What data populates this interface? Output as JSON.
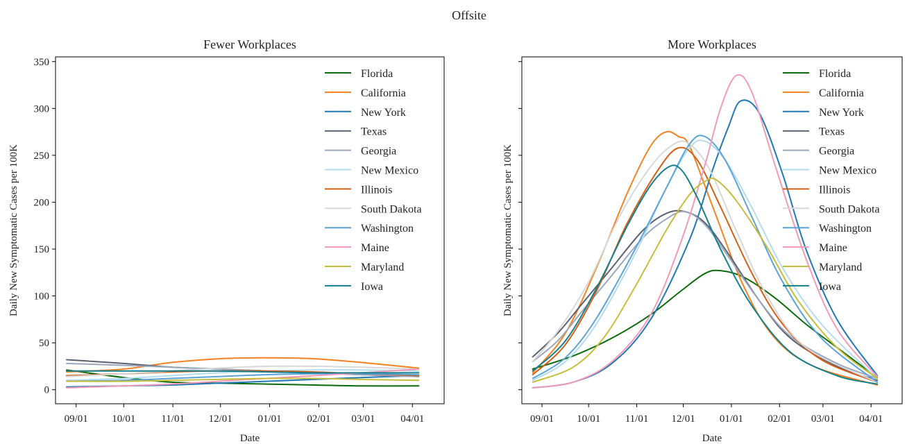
{
  "suptitle": "Offsite",
  "colors": {
    "Florida": "#0a6b0a",
    "California": "#f5821f",
    "New York": "#1f77b4",
    "Texas": "#5a6170",
    "Georgia": "#9aa7bd",
    "New Mexico": "#b4dcef",
    "Illinois": "#d35f16",
    "South Dakota": "#d8d8d8",
    "Washington": "#5ba3d9",
    "Maine": "#f29ab8",
    "Maryland": "#c6bd3c",
    "Iowa": "#147f8c"
  },
  "chart_data": [
    {
      "type": "line",
      "title": "Fewer Workplaces",
      "xlabel": "Date",
      "ylabel": "Daily New Symptomatic Cases per 100K",
      "x_ticks": [
        "09/01",
        "10/01",
        "11/01",
        "12/01",
        "01/01",
        "02/01",
        "03/01",
        "04/01"
      ],
      "y_ticks": [
        0,
        50,
        100,
        150,
        200,
        250,
        300,
        350
      ],
      "ylim": [
        -15,
        355
      ],
      "xlim_days": [
        -13,
        232
      ],
      "legend": "upper-right",
      "series": [
        {
          "name": "Florida",
          "x_days": [
            -6,
            30,
            60,
            90,
            120,
            150,
            180,
            216
          ],
          "values": [
            21,
            13,
            8,
            7,
            6,
            5,
            4,
            4
          ]
        },
        {
          "name": "California",
          "x_days": [
            -6,
            30,
            60,
            90,
            120,
            150,
            180,
            216
          ],
          "values": [
            19,
            22,
            29,
            33,
            34,
            33,
            29,
            23
          ]
        },
        {
          "name": "New York",
          "x_days": [
            -6,
            30,
            60,
            90,
            120,
            150,
            180,
            216
          ],
          "values": [
            3,
            4,
            5,
            7,
            9,
            11,
            13,
            15
          ]
        },
        {
          "name": "Texas",
          "x_days": [
            -6,
            30,
            60,
            90,
            120,
            150,
            180,
            216
          ],
          "values": [
            32,
            28,
            24,
            22,
            20,
            18,
            16,
            14
          ]
        },
        {
          "name": "Georgia",
          "x_days": [
            -6,
            30,
            60,
            90,
            120,
            150,
            180,
            216
          ],
          "values": [
            28,
            26,
            24,
            22,
            20,
            18,
            16,
            14
          ]
        },
        {
          "name": "New Mexico",
          "x_days": [
            -6,
            30,
            60,
            90,
            120,
            150,
            180,
            216
          ],
          "values": [
            10,
            12,
            15,
            18,
            20,
            21,
            21,
            20
          ]
        },
        {
          "name": "Illinois",
          "x_days": [
            -6,
            30,
            60,
            90,
            120,
            150,
            180,
            216
          ],
          "values": [
            15,
            17,
            19,
            20,
            20,
            19,
            17,
            15
          ]
        },
        {
          "name": "South Dakota",
          "x_days": [
            -6,
            30,
            60,
            90,
            120,
            150,
            180,
            216
          ],
          "values": [
            14,
            17,
            20,
            23,
            25,
            25,
            24,
            22
          ]
        },
        {
          "name": "Washington",
          "x_days": [
            -6,
            30,
            60,
            90,
            120,
            150,
            180,
            216
          ],
          "values": [
            9,
            10,
            12,
            14,
            16,
            17,
            17,
            16
          ]
        },
        {
          "name": "Maine",
          "x_days": [
            -6,
            30,
            60,
            90,
            120,
            150,
            180,
            216
          ],
          "values": [
            2,
            4,
            6,
            9,
            12,
            15,
            18,
            22
          ]
        },
        {
          "name": "Maryland",
          "x_days": [
            -6,
            30,
            60,
            90,
            120,
            150,
            180,
            216
          ],
          "values": [
            9,
            9,
            10,
            11,
            12,
            12,
            11,
            10
          ]
        },
        {
          "name": "Iowa",
          "x_days": [
            -6,
            30,
            60,
            90,
            120,
            150,
            180,
            216
          ],
          "values": [
            20,
            20,
            20,
            20,
            19,
            18,
            18,
            18
          ]
        }
      ]
    },
    {
      "type": "line",
      "title": "More Workplaces",
      "xlabel": "Date",
      "ylabel": "Daily New Symptomatic Cases per 100K",
      "x_ticks": [
        "09/01",
        "10/01",
        "11/01",
        "12/01",
        "01/01",
        "02/01",
        "03/01",
        "04/01"
      ],
      "y_ticks": [
        0,
        50,
        100,
        150,
        200,
        250,
        300,
        350
      ],
      "ylim": [
        -15,
        355
      ],
      "xlim_days": [
        -13,
        232
      ],
      "legend": "upper-right",
      "series": [
        {
          "name": "Florida",
          "x_days": [
            -6,
            20,
            45,
            70,
            90,
            105,
            115,
            130,
            150,
            170,
            190,
            216
          ],
          "values": [
            22,
            36,
            55,
            80,
            106,
            124,
            127,
            120,
            98,
            70,
            45,
            13
          ]
        },
        {
          "name": "California",
          "x_days": [
            -6,
            15,
            35,
            55,
            70,
            80,
            88,
            95,
            110,
            130,
            150,
            175,
            216
          ],
          "values": [
            18,
            60,
            130,
            210,
            260,
            275,
            270,
            260,
            195,
            110,
            55,
            25,
            5
          ]
        },
        {
          "name": "New York",
          "x_days": [
            -6,
            20,
            45,
            70,
            95,
            110,
            120,
            128,
            140,
            155,
            170,
            190,
            216
          ],
          "values": [
            2,
            8,
            28,
            75,
            160,
            235,
            280,
            308,
            295,
            230,
            150,
            75,
            15
          ]
        },
        {
          "name": "Texas",
          "x_days": [
            -6,
            10,
            25,
            45,
            65,
            80,
            92,
            105,
            120,
            140,
            160,
            190,
            216
          ],
          "values": [
            35,
            60,
            90,
            130,
            170,
            188,
            190,
            178,
            145,
            95,
            55,
            25,
            10
          ]
        },
        {
          "name": "Georgia",
          "x_days": [
            -6,
            10,
            25,
            45,
            65,
            80,
            92,
            105,
            120,
            140,
            160,
            190,
            216
          ],
          "values": [
            30,
            52,
            82,
            122,
            162,
            182,
            190,
            176,
            142,
            95,
            57,
            28,
            12
          ]
        },
        {
          "name": "New Mexico",
          "x_days": [
            -6,
            15,
            35,
            60,
            80,
            95,
            105,
            118,
            135,
            155,
            180,
            216
          ],
          "values": [
            10,
            30,
            70,
            145,
            215,
            258,
            265,
            245,
            195,
            130,
            70,
            12
          ]
        },
        {
          "name": "Illinois",
          "x_days": [
            -6,
            15,
            35,
            55,
            75,
            88,
            100,
            115,
            135,
            155,
            180,
            216
          ],
          "values": [
            16,
            48,
            105,
            178,
            235,
            258,
            245,
            195,
            125,
            70,
            32,
            8
          ]
        },
        {
          "name": "South Dakota",
          "x_days": [
            -6,
            10,
            30,
            50,
            70,
            85,
            95,
            108,
            125,
            145,
            170,
            216
          ],
          "values": [
            30,
            62,
            115,
            185,
            238,
            262,
            262,
            235,
            170,
            100,
            45,
            8
          ]
        },
        {
          "name": "Washington",
          "x_days": [
            -6,
            15,
            35,
            60,
            80,
            95,
            105,
            118,
            135,
            155,
            180,
            216
          ],
          "values": [
            12,
            34,
            76,
            150,
            215,
            262,
            270,
            245,
            185,
            115,
            55,
            8
          ]
        },
        {
          "name": "Maine",
          "x_days": [
            -6,
            20,
            45,
            70,
            90,
            105,
            115,
            125,
            135,
            150,
            170,
            190,
            216
          ],
          "values": [
            2,
            8,
            30,
            80,
            160,
            240,
            300,
            335,
            318,
            240,
            140,
            65,
            14
          ]
        },
        {
          "name": "Maryland",
          "x_days": [
            -6,
            20,
            40,
            60,
            80,
            95,
            105,
            112,
            125,
            145,
            165,
            190,
            216
          ],
          "values": [
            8,
            24,
            56,
            110,
            170,
            208,
            222,
            224,
            202,
            152,
            95,
            45,
            12
          ]
        },
        {
          "name": "Iowa",
          "x_days": [
            -6,
            15,
            35,
            55,
            70,
            82,
            90,
            100,
            115,
            135,
            160,
            190,
            216
          ],
          "values": [
            20,
            52,
            108,
            175,
            218,
            238,
            234,
            205,
            150,
            90,
            40,
            15,
            6
          ]
        }
      ]
    }
  ]
}
